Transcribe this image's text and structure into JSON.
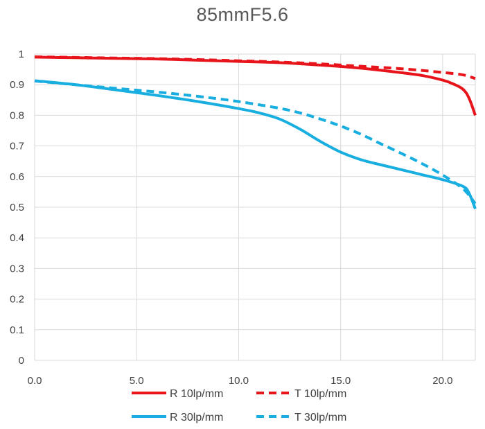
{
  "chart_data": {
    "type": "line",
    "title": "85mmF5.6",
    "xlabel": "",
    "ylabel": "",
    "xlim": [
      0,
      21.6
    ],
    "ylim": [
      0,
      1
    ],
    "x_ticks": [
      0,
      5,
      10,
      15,
      20
    ],
    "x_tick_labels": [
      "0.0",
      "5.0",
      "10.0",
      "15.0",
      "20.0"
    ],
    "y_ticks": [
      0,
      0.1,
      0.2,
      0.3,
      0.4,
      0.5,
      0.6,
      0.7,
      0.8,
      0.9,
      1
    ],
    "y_tick_labels": [
      "0",
      "0.1",
      "0.2",
      "0.3",
      "0.4",
      "0.5",
      "0.6",
      "0.7",
      "0.8",
      "0.9",
      "1"
    ],
    "grid": true,
    "legend_position": "bottom",
    "series": [
      {
        "name": "R 10lp/mm",
        "color": "#e8141b",
        "dash": "solid",
        "x": [
          0,
          2,
          4,
          6,
          8,
          10,
          12,
          14,
          16,
          18,
          19,
          20,
          20.5,
          21,
          21.3,
          21.6
        ],
        "y": [
          0.99,
          0.988,
          0.986,
          0.984,
          0.98,
          0.976,
          0.972,
          0.964,
          0.954,
          0.939,
          0.93,
          0.915,
          0.903,
          0.885,
          0.855,
          0.8
        ]
      },
      {
        "name": "T 10lp/mm",
        "color": "#e8141b",
        "dash": "dashed",
        "x": [
          0,
          2,
          4,
          6,
          8,
          10,
          12,
          14,
          16,
          18,
          20,
          21,
          21.6
        ],
        "y": [
          0.991,
          0.989,
          0.987,
          0.985,
          0.982,
          0.978,
          0.974,
          0.968,
          0.96,
          0.952,
          0.94,
          0.932,
          0.92
        ]
      },
      {
        "name": "R 30lp/mm",
        "color": "#19aee0",
        "dash": "solid",
        "x": [
          0,
          2,
          4,
          6,
          8,
          10,
          11,
          12,
          13,
          14,
          15,
          16,
          17,
          18,
          19,
          20,
          21,
          21.3,
          21.6
        ],
        "y": [
          0.913,
          0.9,
          0.883,
          0.865,
          0.845,
          0.822,
          0.808,
          0.788,
          0.755,
          0.715,
          0.68,
          0.655,
          0.638,
          0.622,
          0.606,
          0.59,
          0.568,
          0.545,
          0.495
        ]
      },
      {
        "name": "T 30lp/mm",
        "color": "#19aee0",
        "dash": "dashed",
        "x": [
          0,
          2,
          4,
          6,
          8,
          10,
          12,
          13,
          14,
          15,
          16,
          17,
          18,
          19,
          20,
          21,
          21.6
        ],
        "y": [
          0.912,
          0.9,
          0.888,
          0.876,
          0.862,
          0.845,
          0.823,
          0.808,
          0.788,
          0.765,
          0.738,
          0.706,
          0.675,
          0.642,
          0.605,
          0.56,
          0.512
        ]
      }
    ]
  }
}
